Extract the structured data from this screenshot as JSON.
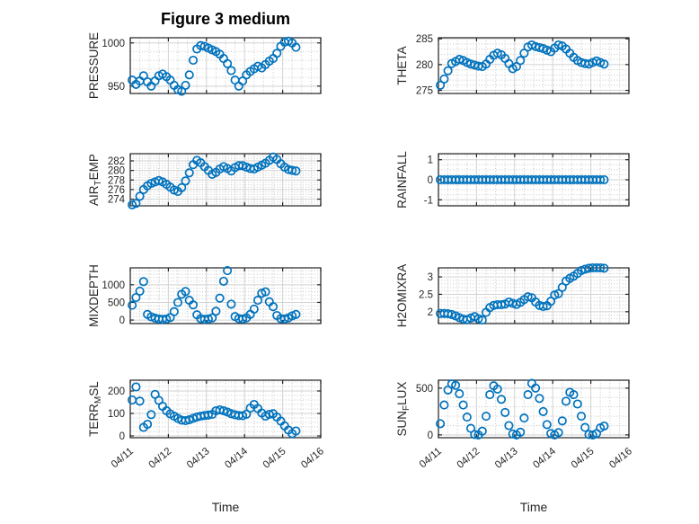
{
  "chart_data": {
    "type": "scatter",
    "figure_title": "Figure 3 medium",
    "xlabel": "Time",
    "x_axis": {
      "tick_labels": [
        "04/11",
        "04/12",
        "04/13",
        "04/14",
        "04/15",
        "04/16"
      ],
      "tick_positions_days": [
        0,
        1,
        2,
        3,
        4,
        5
      ],
      "range_days": [
        0,
        5
      ],
      "minor_step_days": 0.25,
      "tick_label_rotation_deg": -40
    },
    "marker": {
      "shape": "open-circle",
      "color": "#0072BD",
      "radius_px": 4.2,
      "stroke_px": 1.7
    },
    "grid": {
      "major_style": "solid",
      "minor_style": "dotted",
      "major_color": "#d2d2d2",
      "minor_color": "#c6c6c6"
    },
    "colors": {
      "background": "#ffffff",
      "box": "#222222",
      "tick_text": "#262626",
      "label_text": "#262626",
      "title_text": "#000000"
    },
    "legend": "none",
    "x_days": [
      0.05,
      0.15,
      0.25,
      0.35,
      0.45,
      0.55,
      0.65,
      0.75,
      0.85,
      0.95,
      1.05,
      1.15,
      1.25,
      1.35,
      1.45,
      1.55,
      1.65,
      1.75,
      1.85,
      1.95,
      2.05,
      2.15,
      2.25,
      2.35,
      2.45,
      2.55,
      2.65,
      2.75,
      2.85,
      2.95,
      3.05,
      3.15,
      3.25,
      3.35,
      3.45,
      3.55,
      3.65,
      3.75,
      3.85,
      3.95,
      4.05,
      4.15,
      4.25,
      4.35
    ],
    "subplots": [
      {
        "id": "pressure",
        "row": 0,
        "col": 0,
        "label_parts": [
          {
            "text": "PRESSURE",
            "sub": false
          }
        ],
        "ylim": [
          941.5,
          1006
        ],
        "yticks": [
          950,
          1000
        ],
        "yminor": 10,
        "values": [
          957,
          952,
          956,
          962,
          955,
          950,
          956,
          962,
          964,
          961,
          957,
          951,
          946,
          944,
          951,
          963,
          980,
          993,
          997,
          996,
          994,
          992,
          990,
          987,
          982,
          976,
          968,
          957,
          950,
          956,
          963,
          967,
          970,
          973,
          971,
          975,
          979,
          982,
          988,
          996,
          1001,
          1002,
          1000,
          995
        ]
      },
      {
        "id": "theta",
        "row": 0,
        "col": 1,
        "label_parts": [
          {
            "text": "THETA",
            "sub": false
          }
        ],
        "ylim": [
          274.4,
          285.2
        ],
        "yticks": [
          275,
          280,
          285
        ],
        "yminor": 1,
        "values": [
          276.0,
          277.2,
          278.8,
          280.2,
          280.6,
          281.0,
          280.8,
          280.4,
          280.1,
          279.9,
          279.7,
          279.6,
          280.1,
          281.0,
          281.8,
          282.2,
          281.9,
          281.2,
          280.2,
          279.2,
          279.6,
          280.8,
          282.2,
          283.4,
          283.8,
          283.5,
          283.3,
          283.1,
          282.8,
          282.5,
          283.2,
          283.8,
          283.6,
          283.0,
          282.2,
          281.4,
          280.8,
          280.4,
          280.2,
          280.1,
          280.4,
          280.7,
          280.4,
          280.1
        ]
      },
      {
        "id": "air-temp",
        "row": 1,
        "col": 0,
        "label_parts": [
          {
            "text": "AIR",
            "sub": false
          },
          {
            "text": "T",
            "sub": true
          },
          {
            "text": "EMP",
            "sub": false
          }
        ],
        "ylim": [
          272.6,
          283.5
        ],
        "yticks": [
          274,
          276,
          278,
          280,
          282
        ],
        "yminor": 0.5,
        "values": [
          272.8,
          273.1,
          274.6,
          276.0,
          276.8,
          277.3,
          277.6,
          277.9,
          277.6,
          277.1,
          276.5,
          275.9,
          275.6,
          276.4,
          277.8,
          279.5,
          281.2,
          282.1,
          281.6,
          280.8,
          280.0,
          279.2,
          279.6,
          280.3,
          280.8,
          280.4,
          279.9,
          280.6,
          281.0,
          281.0,
          280.7,
          280.4,
          280.3,
          280.7,
          281.1,
          281.5,
          282.1,
          282.8,
          282.3,
          281.4,
          280.7,
          280.2,
          280.0,
          279.9
        ]
      },
      {
        "id": "rainfall",
        "row": 1,
        "col": 1,
        "label_parts": [
          {
            "text": "RAINFALL",
            "sub": false
          }
        ],
        "ylim": [
          -1.3,
          1.3
        ],
        "yticks": [
          -1,
          0,
          1
        ],
        "yminor": 0.25,
        "values": [
          0,
          0,
          0,
          0,
          0,
          0,
          0,
          0,
          0,
          0,
          0,
          0,
          0,
          0,
          0,
          0,
          0,
          0,
          0,
          0,
          0,
          0,
          0,
          0,
          0,
          0,
          0,
          0,
          0,
          0,
          0,
          0,
          0,
          0,
          0,
          0,
          0,
          0,
          0,
          0,
          0,
          0,
          0,
          0
        ]
      },
      {
        "id": "mixdepth",
        "row": 2,
        "col": 0,
        "label_parts": [
          {
            "text": "MIXDEPTH",
            "sub": false
          }
        ],
        "ylim": [
          -100,
          1480
        ],
        "yticks": [
          0,
          500,
          1000
        ],
        "yminor": 100,
        "values": [
          420,
          640,
          820,
          1090,
          160,
          90,
          50,
          30,
          20,
          30,
          70,
          240,
          500,
          730,
          810,
          560,
          430,
          150,
          40,
          20,
          30,
          60,
          250,
          620,
          1100,
          1400,
          450,
          100,
          40,
          30,
          60,
          160,
          310,
          560,
          760,
          800,
          520,
          380,
          130,
          40,
          30,
          60,
          120,
          160
        ]
      },
      {
        "id": "h2omixra",
        "row": 2,
        "col": 1,
        "label_parts": [
          {
            "text": "H2OMIXRA",
            "sub": false
          }
        ],
        "ylim": [
          1.66,
          3.26
        ],
        "yticks": [
          2,
          2.5,
          3
        ],
        "yminor": 0.1,
        "values": [
          1.95,
          1.95,
          1.94,
          1.92,
          1.88,
          1.83,
          1.79,
          1.77,
          1.82,
          1.86,
          1.8,
          1.76,
          1.98,
          2.12,
          2.18,
          2.2,
          2.2,
          2.22,
          2.28,
          2.24,
          2.21,
          2.27,
          2.35,
          2.43,
          2.4,
          2.28,
          2.18,
          2.15,
          2.17,
          2.3,
          2.48,
          2.52,
          2.7,
          2.88,
          2.96,
          3.02,
          3.1,
          3.18,
          3.22,
          3.25,
          3.26,
          3.26,
          3.26,
          3.25
        ]
      },
      {
        "id": "terr-msl",
        "row": 3,
        "col": 0,
        "label_parts": [
          {
            "text": "TERR",
            "sub": false
          },
          {
            "text": "M",
            "sub": true
          },
          {
            "text": "SL",
            "sub": false
          }
        ],
        "ylim": [
          -8,
          248
        ],
        "yticks": [
          0,
          100,
          200
        ],
        "yminor": 20,
        "values": [
          160,
          218,
          155,
          38,
          52,
          95,
          185,
          158,
          132,
          112,
          98,
          88,
          78,
          70,
          68,
          72,
          78,
          84,
          88,
          91,
          93,
          96,
          112,
          116,
          112,
          106,
          99,
          94,
          91,
          90,
          97,
          124,
          140,
          122,
          102,
          88,
          96,
          99,
          84,
          66,
          45,
          26,
          10,
          22
        ]
      },
      {
        "id": "sun-flux",
        "row": 3,
        "col": 1,
        "label_parts": [
          {
            "text": "SUN",
            "sub": false
          },
          {
            "text": "F",
            "sub": true
          },
          {
            "text": "LUX",
            "sub": false
          }
        ],
        "ylim": [
          -30,
          585
        ],
        "yticks": [
          0,
          500
        ],
        "yminor": 100,
        "values": [
          120,
          320,
          480,
          545,
          530,
          440,
          320,
          190,
          70,
          5,
          0,
          40,
          200,
          430,
          525,
          490,
          380,
          240,
          100,
          10,
          0,
          30,
          180,
          430,
          550,
          500,
          390,
          250,
          110,
          15,
          0,
          25,
          150,
          360,
          455,
          430,
          330,
          200,
          80,
          5,
          0,
          15,
          75,
          95
        ]
      }
    ]
  }
}
